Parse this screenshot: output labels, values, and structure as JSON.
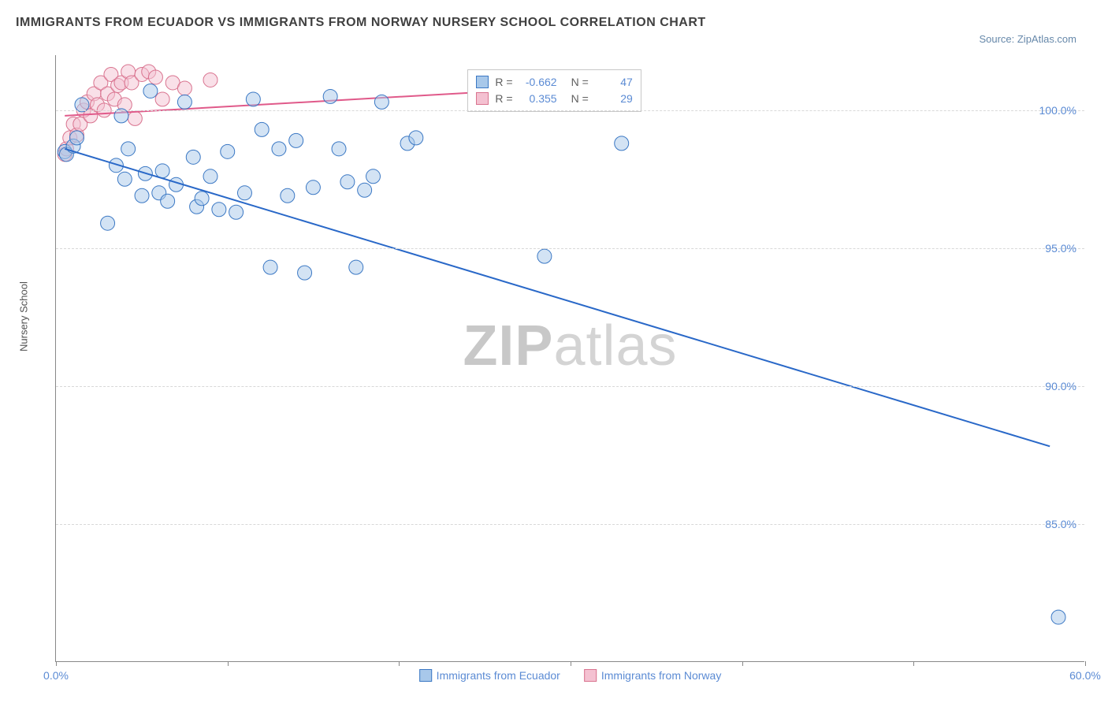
{
  "title": "IMMIGRANTS FROM ECUADOR VS IMMIGRANTS FROM NORWAY NURSERY SCHOOL CORRELATION CHART",
  "source_prefix": "Source: ",
  "source_name": "ZipAtlas.com",
  "y_axis_label": "Nursery School",
  "watermark_a": "ZIP",
  "watermark_b": "atlas",
  "chart": {
    "type": "scatter",
    "background_color": "#ffffff",
    "grid_color": "#d8d8d8",
    "axis_color": "#888888",
    "tick_label_color": "#5b8bd4",
    "tick_fontsize": 14,
    "xlim": [
      0,
      60
    ],
    "ylim": [
      80,
      102
    ],
    "x_ticks": [
      0,
      10,
      20,
      30,
      40,
      50,
      60
    ],
    "x_tick_labels": {
      "0": "0.0%",
      "60": "60.0%"
    },
    "y_ticks": [
      85,
      90,
      95,
      100
    ],
    "y_tick_labels": {
      "85": "85.0%",
      "90": "90.0%",
      "95": "95.0%",
      "100": "100.0%"
    },
    "marker_radius": 9,
    "marker_opacity": 0.5,
    "line_width": 2
  },
  "series": {
    "ecuador": {
      "label": "Immigrants from Ecuador",
      "color": "#6fa3e0",
      "fill": "#a8c8ea",
      "stroke": "#3b78c4",
      "line_color": "#2968c8",
      "R": "-0.662",
      "N": "47",
      "trend": {
        "x1": 0.5,
        "y1": 98.6,
        "x2": 58,
        "y2": 87.8
      },
      "points": [
        [
          0.5,
          98.5
        ],
        [
          0.6,
          98.4
        ],
        [
          1.0,
          98.7
        ],
        [
          1.2,
          99.0
        ],
        [
          1.5,
          100.2
        ],
        [
          3.0,
          95.9
        ],
        [
          3.5,
          98.0
        ],
        [
          3.8,
          99.8
        ],
        [
          4.0,
          97.5
        ],
        [
          4.2,
          98.6
        ],
        [
          5.0,
          96.9
        ],
        [
          5.2,
          97.7
        ],
        [
          5.5,
          100.7
        ],
        [
          6.0,
          97.0
        ],
        [
          6.2,
          97.8
        ],
        [
          6.5,
          96.7
        ],
        [
          7.0,
          97.3
        ],
        [
          7.5,
          100.3
        ],
        [
          8.0,
          98.3
        ],
        [
          8.2,
          96.5
        ],
        [
          8.5,
          96.8
        ],
        [
          9.0,
          97.6
        ],
        [
          9.5,
          96.4
        ],
        [
          10.0,
          98.5
        ],
        [
          10.5,
          96.3
        ],
        [
          11.0,
          97.0
        ],
        [
          11.5,
          100.4
        ],
        [
          12.0,
          99.3
        ],
        [
          12.5,
          94.3
        ],
        [
          13.0,
          98.6
        ],
        [
          13.5,
          96.9
        ],
        [
          14.0,
          98.9
        ],
        [
          14.5,
          94.1
        ],
        [
          15.0,
          97.2
        ],
        [
          16.0,
          100.5
        ],
        [
          16.5,
          98.6
        ],
        [
          17.0,
          97.4
        ],
        [
          17.5,
          94.3
        ],
        [
          18.0,
          97.1
        ],
        [
          18.5,
          97.6
        ],
        [
          19.0,
          100.3
        ],
        [
          20.5,
          98.8
        ],
        [
          21.0,
          99.0
        ],
        [
          28.5,
          94.7
        ],
        [
          32.0,
          100.3
        ],
        [
          33.0,
          98.8
        ],
        [
          58.5,
          81.6
        ]
      ]
    },
    "norway": {
      "label": "Immigrants from Norway",
      "color": "#e89ab3",
      "fill": "#f4c1d1",
      "stroke": "#d9738f",
      "line_color": "#e05a8a",
      "R": "0.355",
      "N": "29",
      "trend": {
        "x1": 0.5,
        "y1": 99.8,
        "x2": 26,
        "y2": 100.7
      },
      "points": [
        [
          0.5,
          98.4
        ],
        [
          0.6,
          98.6
        ],
        [
          0.8,
          99.0
        ],
        [
          1.0,
          99.5
        ],
        [
          1.2,
          99.1
        ],
        [
          1.4,
          99.5
        ],
        [
          1.6,
          100.0
        ],
        [
          1.8,
          100.3
        ],
        [
          2.0,
          99.8
        ],
        [
          2.2,
          100.6
        ],
        [
          2.4,
          100.2
        ],
        [
          2.6,
          101.0
        ],
        [
          2.8,
          100.0
        ],
        [
          3.0,
          100.6
        ],
        [
          3.2,
          101.3
        ],
        [
          3.4,
          100.4
        ],
        [
          3.6,
          100.9
        ],
        [
          3.8,
          101.0
        ],
        [
          4.0,
          100.2
        ],
        [
          4.2,
          101.4
        ],
        [
          4.4,
          101.0
        ],
        [
          4.6,
          99.7
        ],
        [
          5.0,
          101.3
        ],
        [
          5.4,
          101.4
        ],
        [
          5.8,
          101.2
        ],
        [
          6.2,
          100.4
        ],
        [
          6.8,
          101.0
        ],
        [
          7.5,
          100.8
        ],
        [
          9.0,
          101.1
        ]
      ]
    }
  }
}
